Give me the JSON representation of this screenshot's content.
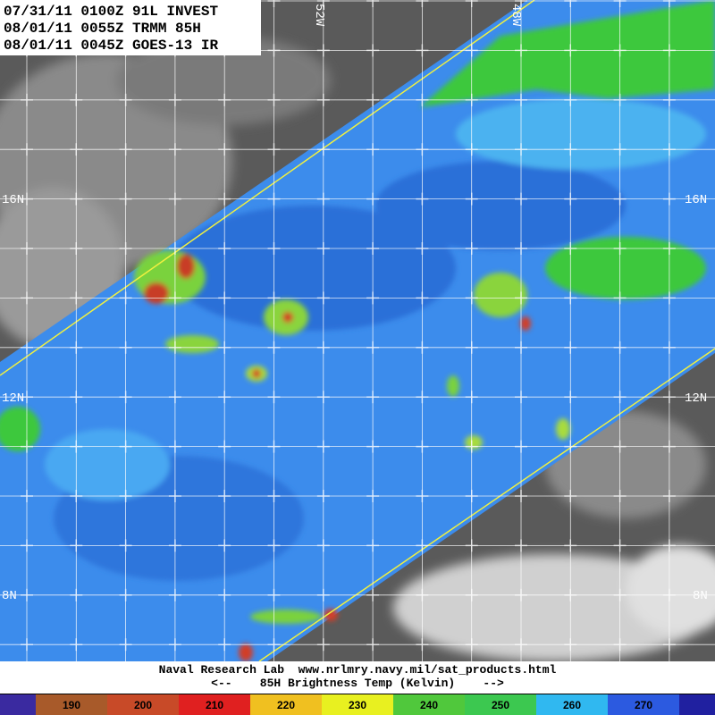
{
  "header": {
    "lines": [
      "07/31/11 0100Z 91L INVEST",
      "08/01/11 0055Z TRMM 85H",
      "08/01/11 0045Z GOES-13 IR"
    ]
  },
  "map": {
    "lat_labels": [
      "16N",
      "12N",
      "8N"
    ],
    "lon_labels": [
      "52W",
      "48W"
    ]
  },
  "footer": {
    "credit": "Naval Research Lab  www.nrlmry.navy.mil/sat_products.html",
    "caption": "<--    85H Brightness Temp (Kelvin)    -->"
  },
  "colorbar": {
    "ticks": [
      190,
      200,
      210,
      220,
      230,
      240,
      250,
      260,
      270
    ]
  }
}
